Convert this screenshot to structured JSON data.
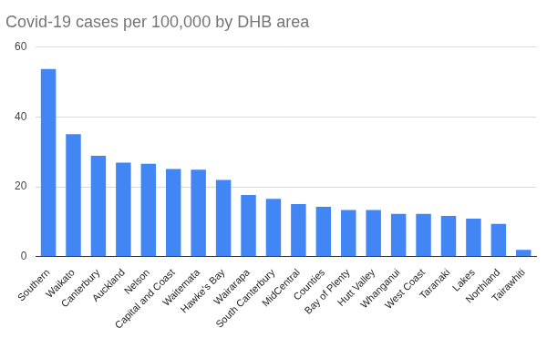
{
  "chart_data": {
    "type": "bar",
    "title": "Covid-19 cases per 100,000 by DHB area",
    "categories": [
      "Southern",
      "Waikato",
      "Canterbury",
      "Auckland",
      "Nelson",
      "Capital and Coast",
      "Waitemata",
      "Hawke's Bay",
      "Wairarapa",
      "South Canterbury",
      "MidCentral",
      "Counties",
      "Bay of Plenty",
      "Hutt Valley",
      "Whanganui",
      "West Coast",
      "Taranaki",
      "Lakes",
      "Northland",
      "Tairawhiti"
    ],
    "values": [
      53.7,
      35.1,
      28.9,
      26.9,
      26.6,
      25.1,
      24.9,
      22.0,
      17.7,
      16.6,
      15.1,
      14.3,
      13.4,
      13.4,
      12.3,
      12.3,
      11.7,
      10.9,
      9.4,
      2.0
    ],
    "color": "#4285f4",
    "ylim": [
      0,
      60
    ],
    "yticks": [
      0,
      20,
      40,
      60
    ],
    "grid": true
  }
}
